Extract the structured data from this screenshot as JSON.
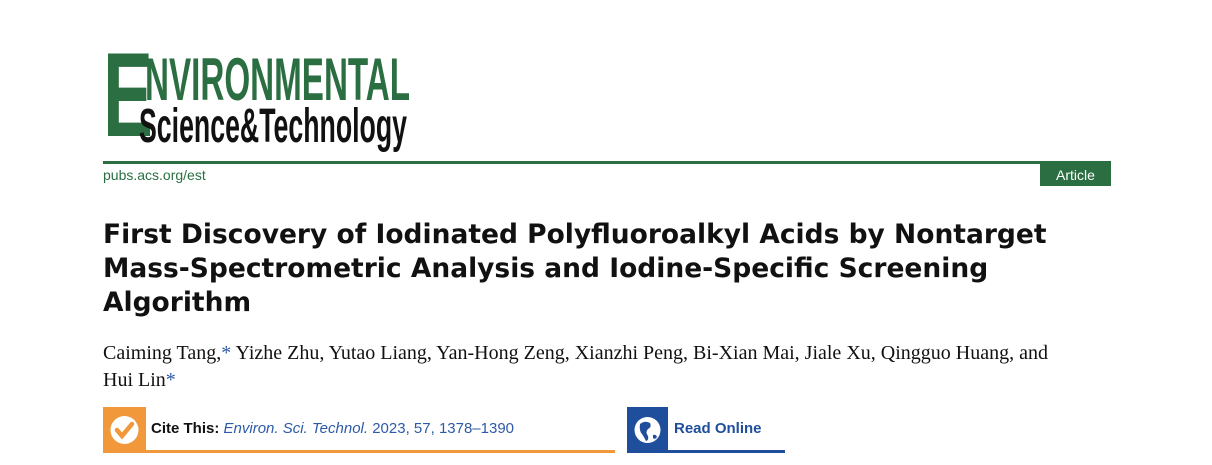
{
  "journal": {
    "logo_text_line1": "ENVIRONMENTAL",
    "logo_text_line2": "Science & Technology",
    "url": "pubs.acs.org/est",
    "article_type": "Article",
    "colors": {
      "brand_green": "#2a6e41",
      "cite_orange": "#f0983a",
      "read_blue": "#1f4e9c"
    }
  },
  "paper": {
    "title": "First Discovery of Iodinated Polyfluoroalkyl Acids by Nontarget Mass-Spectrometric Analysis and Iodine-Specific Screening Algorithm",
    "authors_part1": "Caiming Tang,",
    "star": "*",
    "authors_part2": " Yizhe Zhu, Yutao Liang, Yan-Hong Zeng, Xianzhi Peng, Bi-Xian Mai, Jiale Xu, Qingguo Huang, and Hui Lin"
  },
  "cite": {
    "label": "Cite This:",
    "journal_abbrev": "Environ. Sci. Technol.",
    "details": " 2023, 57, 1378–1390",
    "icon": "check-circle-icon"
  },
  "read_online": {
    "label": "Read Online",
    "icon": "globe-icon"
  }
}
